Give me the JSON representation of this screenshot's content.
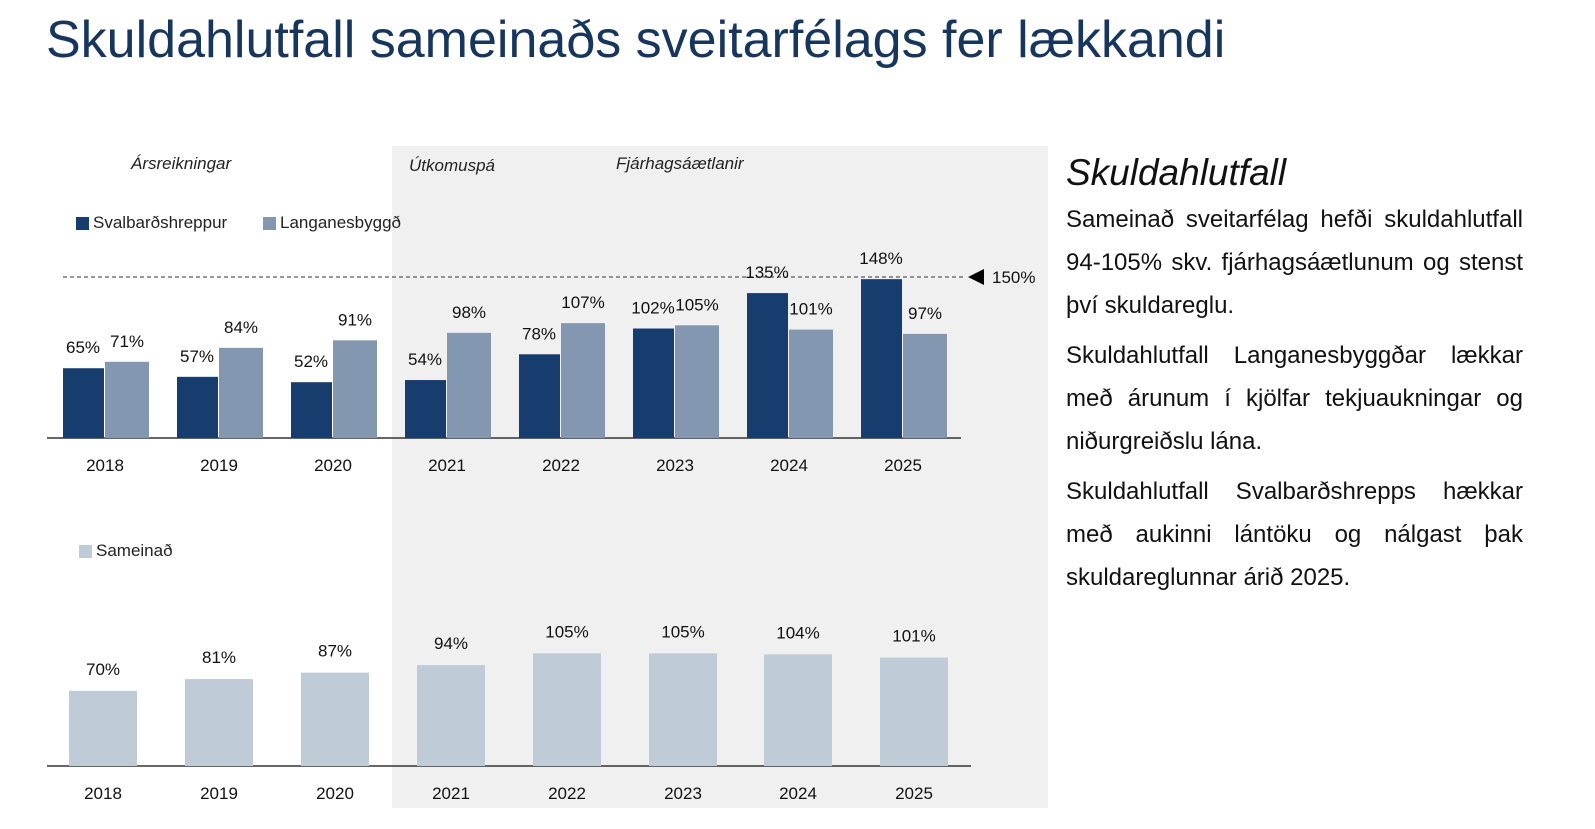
{
  "title": "Skuldahlutfall sameinaðs sveitarfélags fer lækkandi",
  "periods": {
    "actual": "Ársreikningar",
    "forecast": "Útkomuspá",
    "budget": "Fjárhagsáætlanir"
  },
  "sidebar": {
    "heading": "Skuldahlutfall",
    "paragraphs": [
      "Sameinað sveitarfélag hefði skuldahlutfall 94-105% skv. fjárhagsáætlunum og stenst því skuldareglu.",
      "Skuldahlutfall Langanesbyggðar lækkar með árunum í kjölfar tekjuaukningar og niðurgreiðslu lána.",
      "Skuldahlutfall Svalbarðshrepps hækkar með aukinni lántöku og nálgast þak skuldareglunnar árið 2025."
    ]
  },
  "chart_data": [
    {
      "type": "bar",
      "categories": [
        "2018",
        "2019",
        "2020",
        "2021",
        "2022",
        "2023",
        "2024",
        "2025"
      ],
      "series": [
        {
          "name": "Svalbarðshreppur",
          "values": [
            65,
            57,
            52,
            54,
            78,
            102,
            135,
            148
          ],
          "color": "#163d6e"
        },
        {
          "name": "Langanesbyggð",
          "values": [
            71,
            84,
            91,
            98,
            107,
            105,
            101,
            97
          ],
          "color": "#8497b0"
        }
      ],
      "value_labels": {
        "Svalbarðshreppur": [
          "65%",
          "57%",
          "52%",
          "54%",
          "78%",
          "102%",
          "135%",
          "148%"
        ],
        "Langanesbyggð": [
          "71%",
          "84%",
          "91%",
          "98%",
          "107%",
          "105%",
          "101%",
          "97%"
        ]
      },
      "reference_line": {
        "value": 150,
        "label": "150%"
      },
      "ylim": [
        0,
        150
      ],
      "legend_position": "top-left"
    },
    {
      "type": "bar",
      "categories": [
        "2018",
        "2019",
        "2020",
        "2021",
        "2022",
        "2023",
        "2024",
        "2025"
      ],
      "series": [
        {
          "name": "Sameinað",
          "values": [
            70,
            81,
            87,
            94,
            105,
            105,
            104,
            101
          ],
          "color": "#c0cbd8"
        }
      ],
      "value_labels": {
        "Sameinað": [
          "70%",
          "81%",
          "87%",
          "94%",
          "105%",
          "105%",
          "104%",
          "101%"
        ]
      },
      "ylim": [
        0,
        150
      ],
      "legend_position": "top-left"
    }
  ]
}
